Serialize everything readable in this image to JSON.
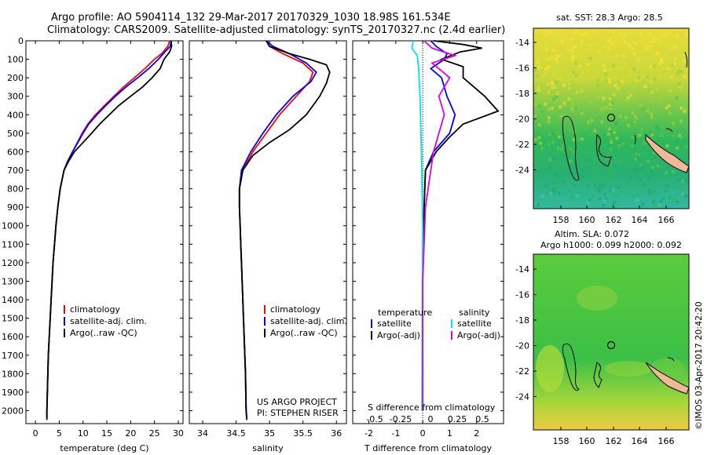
{
  "title_line1": "Argo profile: AO 5904114_132 29-Mar-2017 20170329_1030 18.98S 161.534E",
  "title_line2": "Climatology: CARS2009. Satellite-adjusted climatology: synTS_20170327.nc (2.4d earlier)",
  "depth_ticks": [
    0,
    100,
    200,
    300,
    400,
    500,
    600,
    700,
    800,
    900,
    1000,
    1100,
    1200,
    1300,
    1400,
    1500,
    1600,
    1700,
    1800,
    1900,
    2000
  ],
  "ylim": [
    2070,
    0
  ],
  "colors": {
    "climatology": "#ff0000",
    "satellite": "#0000ff",
    "argo": "#000000",
    "sat_salinity": "#00e5e5",
    "argo_salinity": "#e000e0"
  },
  "panel_temp": {
    "xlabel": "temperature (deg C)",
    "xlim": [
      -2,
      31
    ],
    "xticks": [
      0,
      5,
      10,
      15,
      20,
      25,
      30
    ],
    "legend": [
      "climatology",
      "satellite-adj. clim.",
      "Argo(..raw -QC)"
    ]
  },
  "panel_sal": {
    "xlabel": "salinity",
    "xlim": [
      33.8,
      36.15
    ],
    "xticks": [
      34,
      34.5,
      35,
      35.5,
      36
    ],
    "legend": [
      "climatology",
      "satellite-adj. clim.",
      "Argo(..raw -QC)"
    ],
    "credit_line1": "US ARGO PROJECT",
    "credit_line2": "PI: STEPHEN RISER"
  },
  "panel_diff": {
    "xlabel": "T difference from climatology",
    "toplabel": "S difference from climatology",
    "xlim": [
      -2.6,
      3
    ],
    "xticks": [
      -2,
      -1,
      0,
      1,
      2
    ],
    "sticks": [
      "-0.5",
      "-0.25",
      "0",
      "0.25",
      "0.5"
    ],
    "legend_temp_title": "temperature",
    "legend_sal_title": "salinity",
    "legend_temp": [
      "satellite",
      "Argo(-adj)"
    ],
    "legend_sal": [
      "satellite",
      "Argo(-adj)"
    ]
  },
  "map_top": {
    "label": "sat. SST: 28.3 Argo: 28.5",
    "yticks": [
      "-14",
      "-16",
      "-18",
      "-20",
      "-22",
      "-24"
    ],
    "xticks": [
      "158",
      "160",
      "162",
      "164",
      "166"
    ]
  },
  "map_bottom": {
    "label1": "Altim. SLA: 0.072",
    "label2": "Argo h1000: 0.099 h2000: 0.092",
    "yticks": [
      "-14",
      "-16",
      "-18",
      "-20",
      "-22",
      "-24"
    ],
    "xticks": [
      "158",
      "160",
      "162",
      "164",
      "166"
    ]
  },
  "credit_vertical": "©IMOS 03-Apr-2017 20:42:20",
  "chart_data": [
    {
      "type": "line",
      "xlabel": "temperature (deg C)",
      "ylabel": "",
      "xlim": [
        -2,
        31
      ],
      "ylim": [
        2070,
        0
      ],
      "series": [
        {
          "name": "climatology",
          "color": "#ff0000",
          "points": [
            [
              28.2,
              0
            ],
            [
              27.8,
              30
            ],
            [
              26.5,
              70
            ],
            [
              25,
              100
            ],
            [
              23,
              150
            ],
            [
              20.8,
              200
            ],
            [
              18.5,
              250
            ],
            [
              16.5,
              300
            ],
            [
              14.5,
              350
            ],
            [
              12.6,
              400
            ],
            [
              11,
              450
            ],
            [
              9.8,
              500
            ],
            [
              8.8,
              550
            ],
            [
              7.8,
              600
            ],
            [
              6.8,
              650
            ],
            [
              6,
              700
            ],
            [
              5.2,
              800
            ],
            [
              4.7,
              900
            ],
            [
              4.3,
              1000
            ],
            [
              4,
              1100
            ],
            [
              3.7,
              1200
            ],
            [
              3.5,
              1300
            ],
            [
              3.3,
              1400
            ],
            [
              3.1,
              1500
            ],
            [
              2.9,
              1600
            ],
            [
              2.7,
              1700
            ],
            [
              2.6,
              1800
            ],
            [
              2.5,
              1900
            ],
            [
              2.4,
              2000
            ],
            [
              2.4,
              2050
            ]
          ]
        },
        {
          "name": "satellite-adj. clim.",
          "color": "#0000ff",
          "points": [
            [
              28.5,
              0
            ],
            [
              28.3,
              30
            ],
            [
              27.2,
              60
            ],
            [
              25.8,
              100
            ],
            [
              23.8,
              150
            ],
            [
              21.5,
              200
            ],
            [
              19,
              250
            ],
            [
              16.8,
              300
            ],
            [
              14.8,
              350
            ],
            [
              12.9,
              400
            ],
            [
              11.2,
              450
            ],
            [
              10,
              500
            ],
            [
              8.9,
              550
            ],
            [
              7.8,
              600
            ],
            [
              6.8,
              650
            ],
            [
              6,
              700
            ],
            [
              5.2,
              800
            ],
            [
              4.7,
              900
            ],
            [
              4.3,
              1000
            ],
            [
              4,
              1100
            ],
            [
              3.7,
              1200
            ],
            [
              3.5,
              1300
            ],
            [
              3.3,
              1400
            ],
            [
              3.1,
              1500
            ],
            [
              2.9,
              1600
            ],
            [
              2.7,
              1700
            ],
            [
              2.6,
              1800
            ],
            [
              2.5,
              1900
            ],
            [
              2.4,
              2000
            ],
            [
              2.4,
              2050
            ]
          ]
        },
        {
          "name": "Argo(..raw -QC)",
          "color": "#000000",
          "points": [
            [
              28.5,
              0
            ],
            [
              28.6,
              30
            ],
            [
              28.2,
              60
            ],
            [
              27,
              100
            ],
            [
              26.2,
              150
            ],
            [
              24.5,
              200
            ],
            [
              22.5,
              250
            ],
            [
              20,
              300
            ],
            [
              17.5,
              350
            ],
            [
              15.5,
              400
            ],
            [
              13.5,
              450
            ],
            [
              11.8,
              500
            ],
            [
              10,
              550
            ],
            [
              8.2,
              600
            ],
            [
              7,
              650
            ],
            [
              6,
              700
            ],
            [
              5.2,
              800
            ],
            [
              4.7,
              900
            ],
            [
              4.3,
              1000
            ],
            [
              4,
              1100
            ],
            [
              3.7,
              1200
            ],
            [
              3.5,
              1300
            ],
            [
              3.3,
              1400
            ],
            [
              3.1,
              1500
            ],
            [
              2.9,
              1600
            ],
            [
              2.7,
              1700
            ],
            [
              2.6,
              1800
            ],
            [
              2.5,
              1900
            ],
            [
              2.4,
              2000
            ],
            [
              2.4,
              2040
            ]
          ]
        }
      ]
    },
    {
      "type": "line",
      "xlabel": "salinity",
      "ylabel": "",
      "xlim": [
        33.8,
        36.15
      ],
      "ylim": [
        2070,
        0
      ],
      "series": [
        {
          "name": "climatology",
          "color": "#ff0000",
          "points": [
            [
              34.95,
              0
            ],
            [
              35.0,
              30
            ],
            [
              35.2,
              70
            ],
            [
              35.5,
              120
            ],
            [
              35.65,
              170
            ],
            [
              35.6,
              220
            ],
            [
              35.4,
              300
            ],
            [
              35.15,
              400
            ],
            [
              34.95,
              500
            ],
            [
              34.75,
              600
            ],
            [
              34.6,
              700
            ],
            [
              34.55,
              800
            ],
            [
              34.55,
              900
            ],
            [
              34.56,
              1000
            ],
            [
              34.57,
              1100
            ],
            [
              34.58,
              1200
            ],
            [
              34.6,
              1400
            ],
            [
              34.62,
              1600
            ],
            [
              34.64,
              1800
            ],
            [
              34.65,
              2000
            ],
            [
              34.66,
              2050
            ]
          ]
        },
        {
          "name": "satellite-adj. clim.",
          "color": "#0000ff",
          "points": [
            [
              34.95,
              0
            ],
            [
              35.05,
              30
            ],
            [
              35.3,
              70
            ],
            [
              35.55,
              120
            ],
            [
              35.7,
              170
            ],
            [
              35.62,
              220
            ],
            [
              35.35,
              300
            ],
            [
              35.1,
              400
            ],
            [
              34.9,
              500
            ],
            [
              34.72,
              600
            ],
            [
              34.58,
              700
            ],
            [
              34.55,
              800
            ],
            [
              34.55,
              900
            ],
            [
              34.56,
              1000
            ],
            [
              34.57,
              1100
            ],
            [
              34.58,
              1200
            ],
            [
              34.6,
              1400
            ],
            [
              34.62,
              1600
            ],
            [
              34.64,
              1800
            ],
            [
              34.65,
              2000
            ],
            [
              34.66,
              2050
            ]
          ]
        },
        {
          "name": "Argo(..raw -QC)",
          "color": "#000000",
          "points": [
            [
              34.95,
              0
            ],
            [
              35.0,
              30
            ],
            [
              35.3,
              70
            ],
            [
              35.6,
              100
            ],
            [
              35.85,
              130
            ],
            [
              35.9,
              170
            ],
            [
              35.85,
              230
            ],
            [
              35.75,
              300
            ],
            [
              35.55,
              400
            ],
            [
              35.3,
              480
            ],
            [
              35.0,
              550
            ],
            [
              34.75,
              620
            ],
            [
              34.6,
              700
            ],
            [
              34.55,
              800
            ],
            [
              34.55,
              900
            ],
            [
              34.56,
              1000
            ],
            [
              34.57,
              1100
            ],
            [
              34.58,
              1200
            ],
            [
              34.6,
              1400
            ],
            [
              34.62,
              1600
            ],
            [
              34.64,
              1800
            ],
            [
              34.65,
              2000
            ],
            [
              34.66,
              2040
            ]
          ]
        }
      ]
    },
    {
      "type": "line",
      "xlabel": "T difference from climatology",
      "x2label": "S difference from climatology",
      "ylabel": "",
      "xlim": [
        -2.6,
        3
      ],
      "ylim": [
        2070,
        0
      ],
      "series": [
        {
          "name": "temperature satellite",
          "color": "#0000ff",
          "points": [
            [
              0.3,
              0
            ],
            [
              0.5,
              30
            ],
            [
              0.9,
              70
            ],
            [
              0.8,
              100
            ],
            [
              0.3,
              150
            ],
            [
              0.7,
              200
            ],
            [
              0.9,
              300
            ],
            [
              1.2,
              400
            ],
            [
              1.0,
              500
            ],
            [
              0.4,
              600
            ],
            [
              0.1,
              700
            ],
            [
              0.05,
              900
            ],
            [
              0,
              1200
            ],
            [
              0,
              2000
            ]
          ]
        },
        {
          "name": "temperature Argo(-adj)",
          "color": "#000000",
          "points": [
            [
              0.4,
              0
            ],
            [
              1.5,
              20
            ],
            [
              2.2,
              40
            ],
            [
              1.4,
              60
            ],
            [
              0.7,
              100
            ],
            [
              1.5,
              140
            ],
            [
              1.5,
              200
            ],
            [
              2.3,
              300
            ],
            [
              2.8,
              380
            ],
            [
              1.5,
              450
            ],
            [
              1.0,
              520
            ],
            [
              0.5,
              600
            ],
            [
              0.1,
              700
            ],
            [
              0.05,
              900
            ],
            [
              0,
              1200
            ],
            [
              0,
              2000
            ]
          ]
        },
        {
          "name": "salinity satellite",
          "color": "#00e5e5",
          "points": [
            [
              -0.35,
              0
            ],
            [
              -0.4,
              40
            ],
            [
              -0.2,
              80
            ],
            [
              -0.15,
              150
            ],
            [
              -0.1,
              300
            ],
            [
              -0.05,
              600
            ],
            [
              0,
              1000
            ],
            [
              -0.02,
              1500
            ],
            [
              -0.03,
              2000
            ]
          ]
        },
        {
          "name": "salinity Argo(-adj)",
          "color": "#e000e0",
          "points": [
            [
              0.05,
              0
            ],
            [
              0.35,
              40
            ],
            [
              1.2,
              80
            ],
            [
              0.35,
              120
            ],
            [
              1.0,
              200
            ],
            [
              0.6,
              300
            ],
            [
              0.8,
              400
            ],
            [
              0.6,
              500
            ],
            [
              0.4,
              600
            ],
            [
              0.3,
              700
            ],
            [
              0.1,
              900
            ],
            [
              0,
              1300
            ],
            [
              0,
              2000
            ]
          ]
        }
      ]
    }
  ]
}
